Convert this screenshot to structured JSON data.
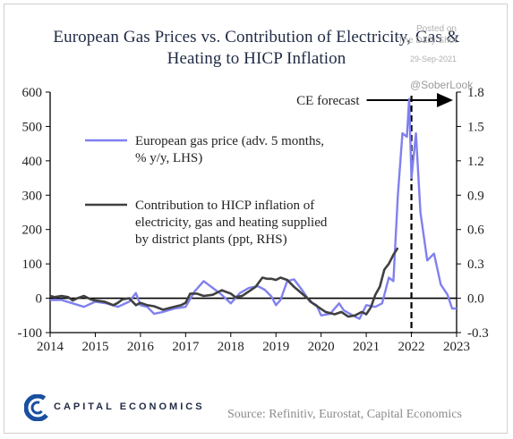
{
  "title_line1": "European Gas Prices vs. Contribution of Electricity, Gas &",
  "title_line2": "Heating to HICP Inflation",
  "watermark": {
    "line1": "Posted on",
    "line2": "The Daily Shot",
    "date": "29-Sep-2021",
    "handle": "@SoberLook"
  },
  "annotation": "CE forecast",
  "source": "Source: Refinitiv, Eurostat, Capital Economics",
  "logo_text": "CAPITAL ECONOMICS",
  "colors": {
    "gas": "#8080f0",
    "hicp": "#404040",
    "text": "#1f2a44",
    "logo_blue": "#1a4fa0"
  },
  "chart_data": {
    "type": "line",
    "xlim": [
      2014,
      2023
    ],
    "x_ticks": [
      "2014",
      "2015",
      "2016",
      "2017",
      "2018",
      "2019",
      "2020",
      "2021",
      "2022",
      "2023"
    ],
    "y_left": {
      "lim": [
        -100,
        600
      ],
      "ticks": [
        "-100",
        "0",
        "100",
        "200",
        "300",
        "400",
        "500",
        "600"
      ]
    },
    "y_right": {
      "lim": [
        -0.3,
        1.8
      ],
      "ticks": [
        "-0.3",
        "0.0",
        "0.3",
        "0.6",
        "0.9",
        "1.2",
        "1.5",
        "1.8"
      ]
    },
    "forecast_x": 2022.0,
    "series": [
      {
        "name": "European gas price (adv. 5 months, % y/y, LHS)",
        "axis": "left",
        "x": [
          2014.0,
          2014.25,
          2014.5,
          2014.75,
          2015.0,
          2015.25,
          2015.5,
          2015.75,
          2015.9,
          2016.0,
          2016.15,
          2016.3,
          2016.5,
          2016.75,
          2017.0,
          2017.2,
          2017.4,
          2017.6,
          2017.8,
          2018.0,
          2018.2,
          2018.4,
          2018.6,
          2018.75,
          2018.9,
          2019.0,
          2019.1,
          2019.25,
          2019.4,
          2019.6,
          2019.75,
          2019.9,
          2020.0,
          2020.2,
          2020.4,
          2020.5,
          2020.7,
          2020.85,
          2021.0,
          2021.2,
          2021.35,
          2021.5,
          2021.6,
          2021.7,
          2021.8,
          2021.9,
          2021.95,
          2022.0,
          2022.1,
          2022.2,
          2022.35,
          2022.5,
          2022.65,
          2022.8,
          2022.9,
          2023.0
        ],
        "values": [
          -5,
          -5,
          -15,
          -25,
          -10,
          -15,
          -25,
          -10,
          15,
          -20,
          -25,
          -45,
          -40,
          -30,
          -25,
          20,
          50,
          30,
          10,
          -15,
          15,
          30,
          35,
          25,
          5,
          -20,
          -5,
          50,
          55,
          20,
          -10,
          -20,
          -50,
          -45,
          -15,
          -35,
          -50,
          -60,
          -20,
          -25,
          -15,
          60,
          50,
          300,
          480,
          470,
          580,
          350,
          480,
          250,
          110,
          130,
          40,
          10,
          -30,
          -30
        ]
      },
      {
        "name": "Contribution to HICP inflation of electricity, gas and heating supplied by district plants (ppt, RHS)",
        "axis": "right",
        "x": [
          2014.0,
          2014.1,
          2014.25,
          2014.4,
          2014.5,
          2014.6,
          2014.75,
          2014.9,
          2015.0,
          2015.2,
          2015.4,
          2015.5,
          2015.6,
          2015.75,
          2015.9,
          2016.0,
          2016.15,
          2016.3,
          2016.5,
          2016.7,
          2016.9,
          2017.0,
          2017.1,
          2017.25,
          2017.4,
          2017.6,
          2017.8,
          2018.0,
          2018.1,
          2018.25,
          2018.4,
          2018.55,
          2018.7,
          2018.8,
          2018.9,
          2019.0,
          2019.1,
          2019.25,
          2019.4,
          2019.55,
          2019.7,
          2019.8,
          2019.95,
          2020.1,
          2020.3,
          2020.45,
          2020.6,
          2020.75,
          2020.9,
          2021.0,
          2021.1,
          2021.2,
          2021.3,
          2021.4,
          2021.5,
          2021.6,
          2021.7
        ],
        "values": [
          0.02,
          0.01,
          0.02,
          0.01,
          -0.02,
          0.0,
          0.02,
          -0.01,
          -0.02,
          -0.03,
          -0.06,
          -0.04,
          -0.01,
          0.0,
          -0.06,
          -0.04,
          -0.06,
          -0.07,
          -0.1,
          -0.08,
          -0.06,
          -0.04,
          0.04,
          0.04,
          0.02,
          0.03,
          0.07,
          0.04,
          0.01,
          0.02,
          0.06,
          0.1,
          0.18,
          0.17,
          0.17,
          0.16,
          0.18,
          0.16,
          0.1,
          0.05,
          0.0,
          -0.04,
          -0.08,
          -0.12,
          -0.14,
          -0.12,
          -0.16,
          -0.15,
          -0.12,
          -0.14,
          -0.08,
          0.03,
          0.1,
          0.25,
          0.3,
          0.38,
          0.44
        ]
      }
    ],
    "legend": [
      {
        "line1": "European gas price (adv. 5 months,",
        "line2": "% y/y, LHS)"
      },
      {
        "line1": "Contribution to HICP inflation of",
        "line2": "electricity, gas and heating supplied",
        "line3": "by district plants (ppt, RHS)"
      }
    ]
  }
}
